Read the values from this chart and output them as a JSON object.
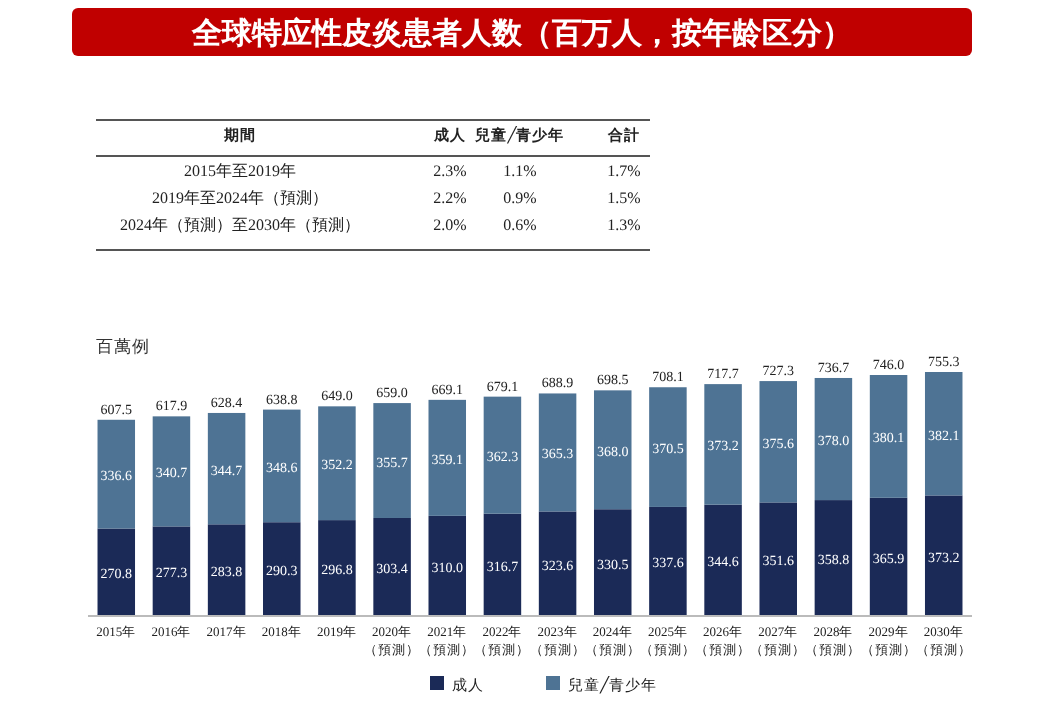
{
  "chart_data": [
    {
      "type": "other",
      "title": "全球特应性皮炎患者人数（百万人，按年龄区分）",
      "annotations": [
        "期間",
        "成人",
        "兒童╱青少年",
        "合計",
        "2015年至2019年",
        "2.3%",
        "1.1%",
        "1.7%",
        "2019年至2024年（預測）",
        "2.2%",
        "0.9%",
        "1.5%",
        "2024年（預測）至2030年（預測）",
        "2.0%",
        "0.6%",
        "1.3%"
      ]
    },
    {
      "type": "bar",
      "stacked": true,
      "ylabel": "百萬例",
      "legend": "bottom",
      "categories": [
        "2015年",
        "2016年",
        "2017年",
        "2018年",
        "2019年",
        "2020年（預測）",
        "2021年（預測）",
        "2022年（預測）",
        "2023年（預測）",
        "2024年（預測）",
        "2025年（預測）",
        "2026年（預測）",
        "2027年（預測）",
        "2028年（預測）",
        "2029年（預測）",
        "2030年（預測）"
      ],
      "series": [
        {
          "name": "成人",
          "color": "#1b2a57",
          "values": [
            270.8,
            277.3,
            283.8,
            290.3,
            296.8,
            303.4,
            310.0,
            316.7,
            323.6,
            330.5,
            337.6,
            344.6,
            351.6,
            358.8,
            365.9,
            373.2
          ],
          "value_labels": [
            "270.8",
            "277.3",
            "283.8",
            "290.3",
            "296.8",
            "303.4",
            "310.0",
            "316.7",
            "323.6",
            "330.5",
            "337.6",
            "344.6",
            "351.6",
            "358.8",
            "365.9",
            "373.2"
          ]
        },
        {
          "name": "兒童╱青少年",
          "color": "#4e7394",
          "values": [
            336.6,
            340.7,
            344.7,
            348.6,
            352.2,
            355.7,
            359.1,
            362.3,
            365.3,
            368.0,
            370.5,
            373.2,
            375.6,
            378.0,
            380.1,
            382.1
          ],
          "value_labels": [
            "336.6",
            "340.7",
            "344.7",
            "348.6",
            "352.2",
            "355.7",
            "359.1",
            "362.3",
            "365.3",
            "368.0",
            "370.5",
            "373.2",
            "375.6",
            "378.0",
            "380.1",
            "382.1"
          ]
        }
      ],
      "totals": [
        "607.5",
        "617.9",
        "628.4",
        "638.8",
        "649.0",
        "659.0",
        "669.1",
        "679.1",
        "688.9",
        "698.5",
        "708.1",
        "717.7",
        "727.3",
        "736.7",
        "746.0",
        "755.3"
      ]
    }
  ]
}
